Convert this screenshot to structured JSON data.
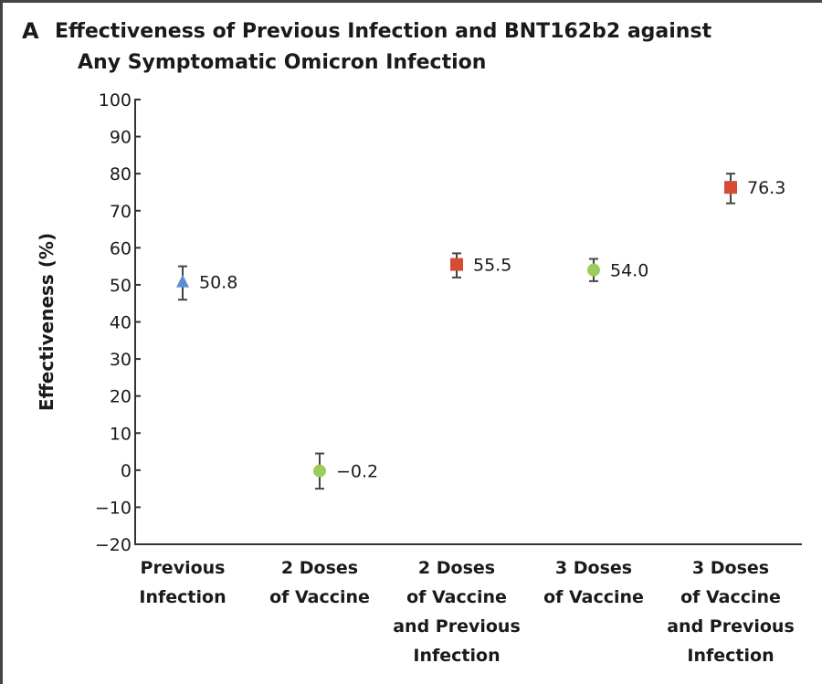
{
  "panel": {
    "letter": "A"
  },
  "chart_data": {
    "type": "scatter",
    "title": "Effectiveness of Previous Infection and BNT162b2 against Any Symptomatic Omicron Infection",
    "title_lines": [
      "Effectiveness of Previous Infection and BNT162b2 against",
      "Any Symptomatic Omicron Infection"
    ],
    "ylabel": "Effectiveness (%)",
    "xlabel": "",
    "ylim": [
      -20,
      100
    ],
    "yticks": [
      100,
      90,
      80,
      70,
      60,
      50,
      40,
      30,
      20,
      10,
      0,
      -10,
      -20
    ],
    "ytick_labels": [
      "100",
      "90",
      "80",
      "70",
      "60",
      "50",
      "40",
      "30",
      "20",
      "10",
      "0",
      "−10",
      "−20"
    ],
    "grid": false,
    "categories": [
      [
        "Previous",
        "Infection"
      ],
      [
        "2 Doses",
        "of Vaccine"
      ],
      [
        "2 Doses",
        "of Vaccine",
        "and Previous",
        "Infection"
      ],
      [
        "3 Doses",
        "of Vaccine"
      ],
      [
        "3 Doses",
        "of Vaccine",
        "and Previous",
        "Infection"
      ]
    ],
    "points": [
      {
        "value": 50.8,
        "label": "50.8",
        "ci": [
          46.0,
          55.0
        ],
        "marker": "triangle",
        "color": "#5b8fd4"
      },
      {
        "value": -0.2,
        "label": "−0.2",
        "ci": [
          -5.0,
          4.5
        ],
        "marker": "circle",
        "color": "#9ccc5a"
      },
      {
        "value": 55.5,
        "label": "55.5",
        "ci": [
          52.0,
          58.5
        ],
        "marker": "square",
        "color": "#d64b34"
      },
      {
        "value": 54.0,
        "label": "54.0",
        "ci": [
          51.0,
          57.0
        ],
        "marker": "circle",
        "color": "#9ccc5a"
      },
      {
        "value": 76.3,
        "label": "76.3",
        "ci": [
          72.0,
          80.0
        ],
        "marker": "square",
        "color": "#d64b34"
      }
    ]
  }
}
